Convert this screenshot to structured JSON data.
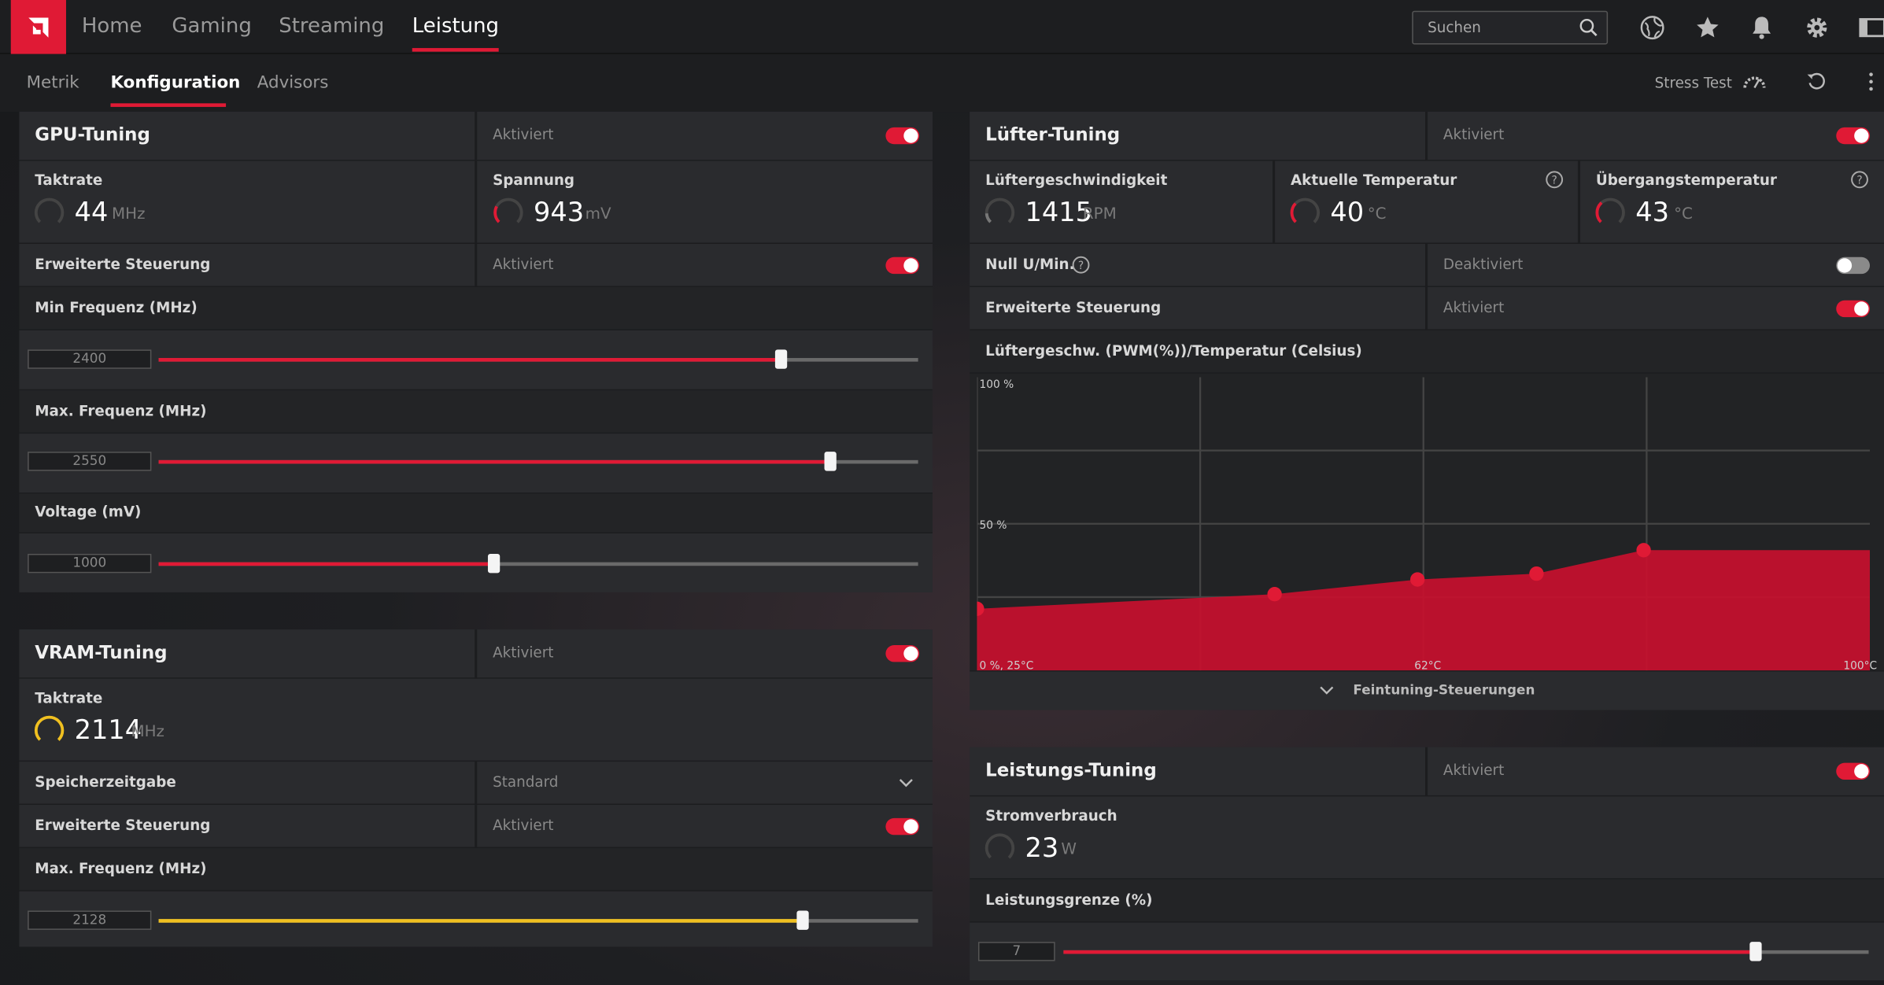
{
  "nav": {
    "items": [
      "Home",
      "Gaming",
      "Streaming",
      "Leistung"
    ],
    "active": "Leistung"
  },
  "search": {
    "placeholder": "Suchen",
    "value": ""
  },
  "top_icons": [
    "globe-icon",
    "star-icon",
    "bell-icon",
    "gear-icon",
    "sidebar-toggle-icon"
  ],
  "subnav": {
    "items": [
      "Metrik",
      "Konfiguration",
      "Advisors"
    ],
    "active": "Konfiguration",
    "stress_test": "Stress Test"
  },
  "colors": {
    "accent": "#e01a35",
    "vram_accent": "#f0c020",
    "panel": "#2a2b2e"
  },
  "gpu": {
    "title": "GPU-Tuning",
    "status": "Aktiviert",
    "enabled": true,
    "clock_label": "Taktrate",
    "clock_value": "44",
    "clock_unit": "MHz",
    "voltage_label": "Spannung",
    "voltage_value": "943",
    "voltage_unit": "mV",
    "advanced_label": "Erweiterte Steuerung",
    "advanced_status": "Aktiviert",
    "advanced_enabled": true,
    "sliders": [
      {
        "label": "Min Frequenz (MHz)",
        "value": "2400",
        "fraction": 0.82
      },
      {
        "label": "Max. Frequenz (MHz)",
        "value": "2550",
        "fraction": 0.885
      },
      {
        "label": "Voltage (mV)",
        "value": "1000",
        "fraction": 0.442
      }
    ]
  },
  "vram": {
    "title": "VRAM-Tuning",
    "status": "Aktiviert",
    "enabled": true,
    "clock_label": "Taktrate",
    "clock_value": "2114",
    "clock_unit": "MHz",
    "timing_label": "Speicherzeitgabe",
    "timing_value": "Standard",
    "advanced_label": "Erweiterte Steuerung",
    "advanced_status": "Aktiviert",
    "advanced_enabled": true,
    "slider": {
      "label": "Max. Frequenz (MHz)",
      "value": "2128",
      "fraction": 0.848
    }
  },
  "fan": {
    "title": "Lüfter-Tuning",
    "status": "Aktiviert",
    "enabled": true,
    "speed_label": "Lüftergeschwindigkeit",
    "speed_value": "1415",
    "speed_unit": "RPM",
    "temp_label": "Aktuelle Temperatur",
    "temp_value": "40",
    "temp_unit": "°C",
    "junction_label": "Übergangstemperatur",
    "junction_value": "43",
    "junction_unit": "°C",
    "zero_rpm_label": "Null U/Min.",
    "zero_rpm_status": "Deaktiviert",
    "zero_rpm_enabled": false,
    "advanced_label": "Erweiterte Steuerung",
    "advanced_status": "Aktiviert",
    "advanced_enabled": true,
    "curve_title": "Lüftergeschw. (PWM(%))/Temperatur (Celsius)",
    "fine_tuning": "Feintuning-Steuerungen"
  },
  "chart_data": {
    "type": "area",
    "title": "Lüftergeschw. (PWM(%))/Temperatur (Celsius)",
    "y_tick_labels": [
      "100 %",
      "50 %"
    ],
    "x_tick_labels": [
      "0 %, 25°C",
      "62°C",
      "100°C"
    ],
    "xlim": [
      25,
      100
    ],
    "ylim": [
      0,
      100
    ],
    "grid": true,
    "points": [
      {
        "x": 25,
        "y": 21
      },
      {
        "x": 50,
        "y": 26
      },
      {
        "x": 62,
        "y": 31
      },
      {
        "x": 72,
        "y": 33
      },
      {
        "x": 81,
        "y": 41
      }
    ]
  },
  "power": {
    "title": "Leistungs-Tuning",
    "status": "Aktiviert",
    "enabled": true,
    "consumption_label": "Stromverbrauch",
    "consumption_value": "23",
    "consumption_unit": "W",
    "slider": {
      "label": "Leistungsgrenze (%)",
      "value": "7",
      "fraction": 0.86
    }
  }
}
